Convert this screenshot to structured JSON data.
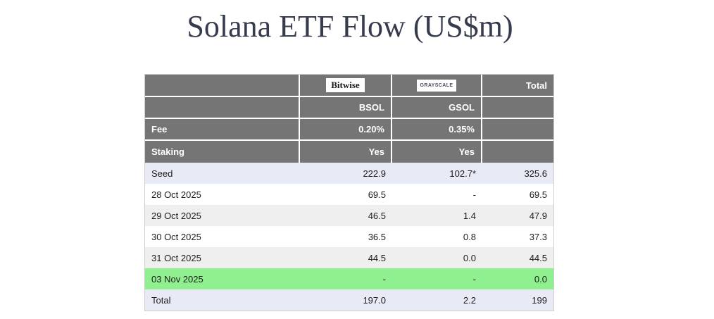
{
  "title": "Solana ETF Flow (US$m)",
  "colors": {
    "header_gray": "#757575",
    "lavender": "#e8ebf6",
    "stripe_gray": "#efefef",
    "white": "#ffffff",
    "highlight_green": "#90f090",
    "text_dark": "#1b1b1b",
    "title_navy": "#363b4e"
  },
  "table": {
    "header": {
      "logos": [
        {
          "name": "Bitwise"
        },
        {
          "name": "GRAYSCALE"
        }
      ],
      "total_label": "Total",
      "tickers": [
        "BSOL",
        "GSOL"
      ],
      "fee_label": "Fee",
      "fees": [
        "0.20%",
        "0.35%"
      ],
      "staking_label": "Staking",
      "staking": [
        "Yes",
        "Yes"
      ]
    },
    "rows": [
      {
        "label": "Seed",
        "bsol": "222.9",
        "gsol": "102.7*",
        "total": "325.6",
        "bg": "lavender"
      },
      {
        "label": "28 Oct 2025",
        "bsol": "69.5",
        "gsol": "-",
        "total": "69.5",
        "bg": "white"
      },
      {
        "label": "29 Oct 2025",
        "bsol": "46.5",
        "gsol": "1.4",
        "total": "47.9",
        "bg": "stripe_gray"
      },
      {
        "label": "30 Oct 2025",
        "bsol": "36.5",
        "gsol": "0.8",
        "total": "37.3",
        "bg": "white"
      },
      {
        "label": "31 Oct 2025",
        "bsol": "44.5",
        "gsol": "0.0",
        "total": "44.5",
        "bg": "stripe_gray"
      },
      {
        "label": "03 Nov 2025",
        "bsol": "-",
        "gsol": "-",
        "total": "0.0",
        "bg": "highlight_green"
      },
      {
        "label": "Total",
        "bsol": "197.0",
        "gsol": "2.2",
        "total": "199",
        "bg": "lavender"
      }
    ]
  }
}
